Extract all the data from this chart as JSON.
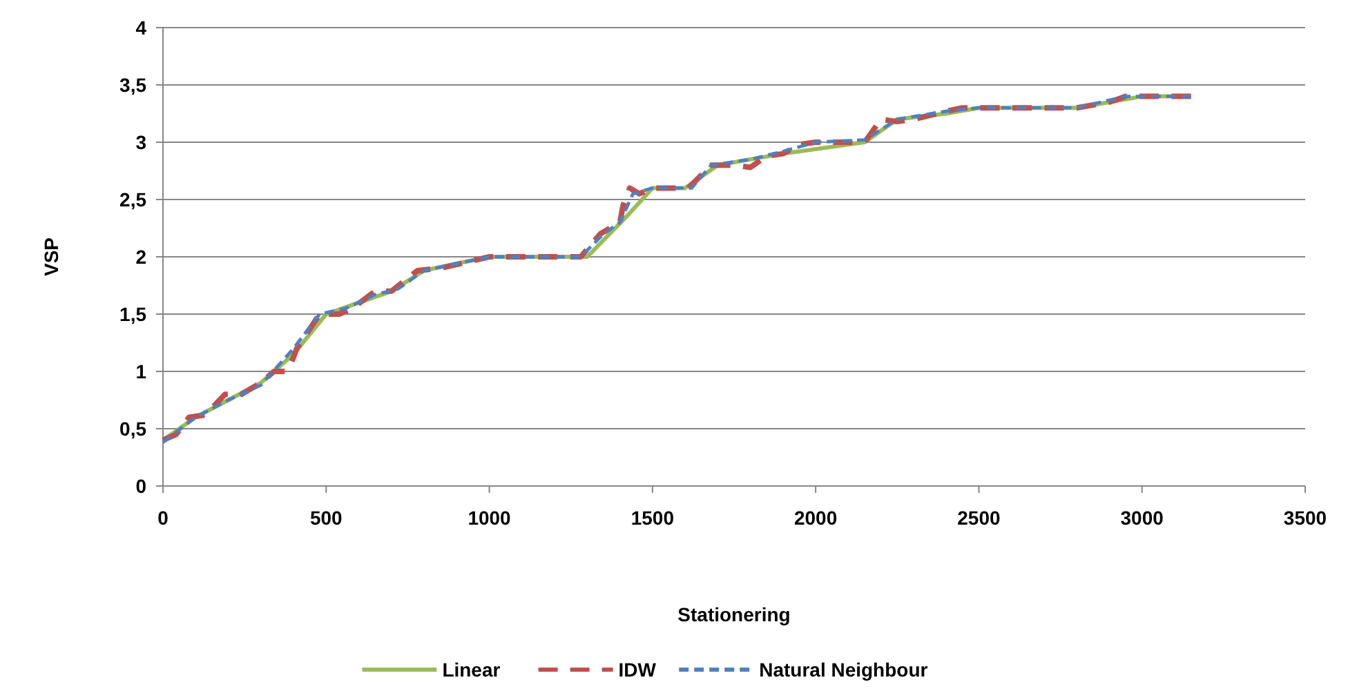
{
  "chart_data": {
    "type": "line",
    "xlabel": "Stationering",
    "ylabel": "VSP",
    "xlim": [
      0,
      3500
    ],
    "xticks": [
      0,
      500,
      1000,
      1500,
      2000,
      2500,
      3000,
      3500
    ],
    "ylim": [
      0,
      4
    ],
    "yticks": [
      0,
      {
        "value": 0.5,
        "label": "0,5"
      },
      1,
      {
        "value": 1.5,
        "label": "1,5"
      },
      2,
      {
        "value": 2.5,
        "label": "2,5"
      },
      3,
      {
        "value": 3.5,
        "label": "3,5"
      },
      4
    ],
    "grid": "y",
    "legend": "bottom",
    "marker": "none",
    "series": [
      {
        "name": "Linear",
        "color": "#9bbb59",
        "line_style": "solid",
        "x": [
          0,
          100,
          200,
          300,
          400,
          500,
          700,
          800,
          1000,
          1300,
          1420,
          1500,
          1600,
          1700,
          1800,
          1900,
          2150,
          2250,
          2400,
          2500,
          2800,
          3000,
          3150
        ],
        "values": [
          0.4,
          0.6,
          0.75,
          0.9,
          1.15,
          1.5,
          1.7,
          1.88,
          2.0,
          2.0,
          2.35,
          2.6,
          2.6,
          2.8,
          2.85,
          2.9,
          3.0,
          3.2,
          3.25,
          3.3,
          3.3,
          3.4,
          3.4
        ]
      },
      {
        "name": "IDW",
        "color": "#c0504d",
        "line_style": "dashed",
        "x": [
          0,
          40,
          80,
          130,
          190,
          240,
          300,
          340,
          375,
          390,
          410,
          480,
          540,
          580,
          650,
          700,
          780,
          850,
          1000,
          1280,
          1340,
          1400,
          1410,
          1430,
          1460,
          1500,
          1610,
          1680,
          1750,
          1800,
          1850,
          1900,
          1950,
          2000,
          2150,
          2200,
          2250,
          2300,
          2400,
          2450,
          2800,
          2900,
          2950,
          3150
        ],
        "values": [
          0.4,
          0.45,
          0.6,
          0.62,
          0.8,
          0.8,
          0.9,
          1.0,
          1.0,
          1.05,
          1.2,
          1.5,
          1.5,
          1.55,
          1.7,
          1.7,
          1.88,
          1.9,
          2.0,
          2.0,
          2.2,
          2.3,
          2.45,
          2.6,
          2.55,
          2.6,
          2.6,
          2.8,
          2.8,
          2.78,
          2.88,
          2.9,
          2.98,
          3.0,
          3.0,
          3.2,
          3.18,
          3.2,
          3.27,
          3.3,
          3.3,
          3.35,
          3.4,
          3.4
        ]
      },
      {
        "name": "Natural Neighbour",
        "color": "#4f81bd",
        "line_style": "dotted",
        "x": [
          0,
          100,
          200,
          300,
          400,
          480,
          560,
          650,
          720,
          800,
          1000,
          1280,
          1350,
          1400,
          1440,
          1500,
          1620,
          1680,
          1800,
          1900,
          2000,
          2150,
          2250,
          2400,
          2500,
          2800,
          2950,
          3150
        ],
        "values": [
          0.38,
          0.6,
          0.75,
          0.88,
          1.2,
          1.5,
          1.55,
          1.67,
          1.72,
          1.88,
          2.0,
          2.0,
          2.2,
          2.3,
          2.55,
          2.6,
          2.6,
          2.8,
          2.85,
          2.92,
          3.0,
          3.02,
          3.2,
          3.27,
          3.3,
          3.3,
          3.4,
          3.4
        ]
      }
    ]
  }
}
